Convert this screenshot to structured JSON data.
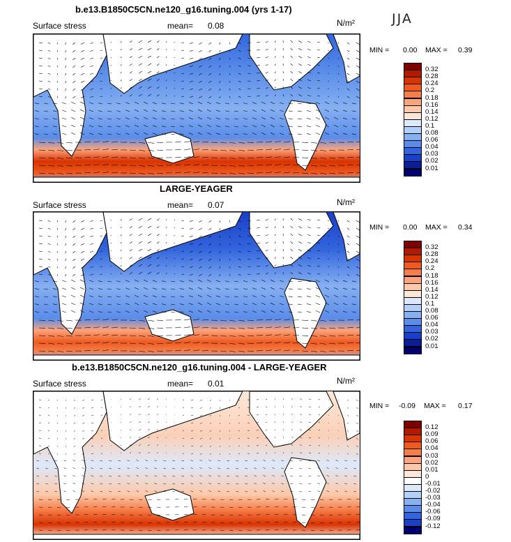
{
  "season": "JJA",
  "units": "N/m²",
  "panels": [
    {
      "title": "b.e13.B1850C5CN.ne120_g16.tuning.004 (yrs 1-17)",
      "field": "Surface stress",
      "mean_label": "mean=",
      "mean": "0.08",
      "min_label": "MIN =",
      "min": "0.00",
      "max_label": "MAX =",
      "max": "0.39",
      "levels": [
        "0.32",
        "0.28",
        "0.24",
        "0.2",
        "0.18",
        "0.16",
        "0.14",
        "0.12",
        "0.1",
        "0.08",
        "0.06",
        "0.04",
        "0.03",
        "0.02",
        "0.01"
      ]
    },
    {
      "title": "LARGE-YEAGER",
      "field": "Surface stress",
      "mean_label": "mean=",
      "mean": "0.07",
      "min_label": "MIN =",
      "min": "0.00",
      "max_label": "MAX =",
      "max": "0.34",
      "levels": [
        "0.32",
        "0.28",
        "0.24",
        "0.2",
        "0.18",
        "0.16",
        "0.14",
        "0.12",
        "0.1",
        "0.08",
        "0.06",
        "0.04",
        "0.03",
        "0.02",
        "0.01"
      ]
    },
    {
      "title": "b.e13.B1850C5CN.ne120_g16.tuning.004 - LARGE-YEAGER",
      "field": "Surface stress",
      "mean_label": "mean=",
      "mean": "0.01",
      "min_label": "MIN =",
      "min": "-0.09",
      "max_label": "MAX =",
      "max": "0.17",
      "levels": [
        "0.12",
        "0.09",
        "0.06",
        "0.04",
        "0.03",
        "0.02",
        "0.01",
        "0",
        "-0.01",
        "-0.02",
        "-0.03",
        "-0.04",
        "-0.06",
        "-0.09",
        "-0.12"
      ]
    }
  ],
  "colors": {
    "abs_scale": [
      "#7f0000",
      "#b21a00",
      "#d93300",
      "#ee5a1f",
      "#f67e4b",
      "#fba37c",
      "#fdc8a8",
      "#fde7d8",
      "#dce9fb",
      "#b4cff8",
      "#86b0f2",
      "#5a8de9",
      "#3265dd",
      "#1a3fc8",
      "#0a1e96",
      "#000070"
    ],
    "diff_scale": [
      "#7f0000",
      "#b21a00",
      "#d93300",
      "#ee5a1f",
      "#f67e4b",
      "#fba37c",
      "#fdc8a8",
      "#fde7d8",
      "#ffffff",
      "#dce9fb",
      "#b4cff8",
      "#86b0f2",
      "#5a8de9",
      "#3265dd",
      "#1a3fc8",
      "#000070"
    ]
  }
}
